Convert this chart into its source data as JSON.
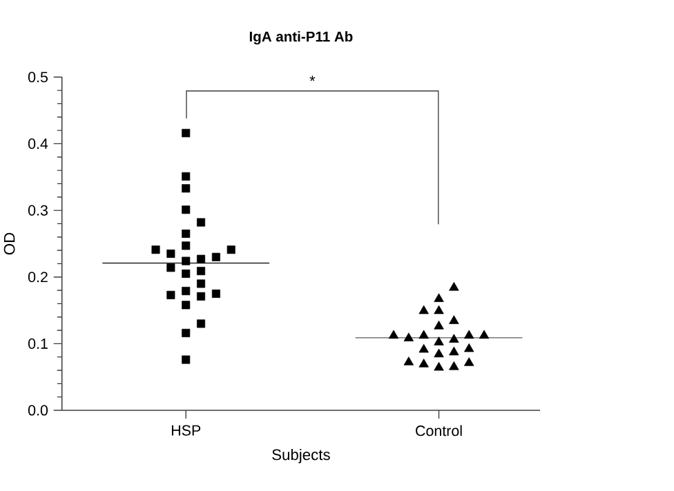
{
  "chart_data": {
    "type": "scatter",
    "title": "IgA anti-P11 Ab",
    "xlabel": "Subjects",
    "ylabel": "OD",
    "categories": [
      "HSP",
      "Control"
    ],
    "ylim": [
      0,
      0.5
    ],
    "yticks": [
      {
        "value": 0,
        "label": "0.0"
      },
      0.1,
      0.2,
      0.3,
      0.4,
      0.5,
      {
        "value": 0.02,
        "label": null
      },
      {
        "value": 0.04,
        "label": null
      },
      {
        "value": 0.06,
        "label": null
      },
      {
        "value": 0.08,
        "label": null
      },
      {
        "value": 0.12,
        "label": null
      },
      {
        "value": 0.14,
        "label": null
      },
      {
        "value": 0.16,
        "label": null
      },
      {
        "value": 0.18,
        "label": null
      },
      {
        "value": 0.22,
        "label": null
      },
      {
        "value": 0.24,
        "label": null
      },
      {
        "value": 0.26,
        "label": null
      },
      {
        "value": 0.28,
        "label": null
      },
      {
        "value": 0.32,
        "label": null
      },
      {
        "value": 0.34,
        "label": null
      },
      {
        "value": 0.36,
        "label": null
      },
      {
        "value": 0.38,
        "label": null
      },
      {
        "value": 0.42,
        "label": null
      },
      {
        "value": 0.44,
        "label": null
      },
      {
        "value": 0.46,
        "label": null
      },
      {
        "value": 0.48,
        "label": null
      }
    ],
    "annotations": [
      "*"
    ],
    "ref_lines": [
      {
        "axis": "y",
        "value": 0.221,
        "color": "#222222"
      },
      {
        "axis": "y",
        "value": 0.109,
        "color": "#777777"
      }
    ],
    "series": [
      {
        "marker": "square",
        "color": "#000000",
        "x": [
          "HSP",
          "HSP",
          "HSP",
          "HSP",
          "HSP",
          "HSP",
          "HSP",
          "HSP",
          "HSP",
          "HSP",
          "HSP",
          "HSP",
          "HSP",
          "HSP",
          "HSP",
          "HSP",
          "HSP",
          "HSP",
          "HSP",
          "HSP",
          "HSP",
          "HSP",
          "HSP",
          "HSP",
          "HSP"
        ],
        "values": [
          0.416,
          0.333,
          0.301,
          0.265,
          0.241,
          0.214,
          0.19,
          0.158,
          0.116,
          0.076,
          0.351,
          0.282,
          0.247,
          0.224,
          0.209,
          0.171,
          0.241,
          0.227,
          0.205,
          0.173,
          0.13,
          0.235,
          0.179,
          0.23,
          0.175
        ]
      },
      {
        "marker": "triangle",
        "color": "#000000",
        "x": [
          "Control",
          "Control",
          "Control",
          "Control",
          "Control",
          "Control",
          "Control",
          "Control",
          "Control",
          "Control",
          "Control",
          "Control",
          "Control",
          "Control",
          "Control",
          "Control",
          "Control",
          "Control",
          "Control",
          "Control",
          "Control",
          "Control"
        ],
        "values": [
          0.184,
          0.149,
          0.126,
          0.091,
          0.064,
          0.167,
          0.149,
          0.092,
          0.069,
          0.134,
          0.102,
          0.065,
          0.106,
          0.072,
          0.112,
          0.087,
          0.112,
          0.108,
          0.071,
          0.112,
          0.084,
          0.112
        ]
      }
    ]
  }
}
